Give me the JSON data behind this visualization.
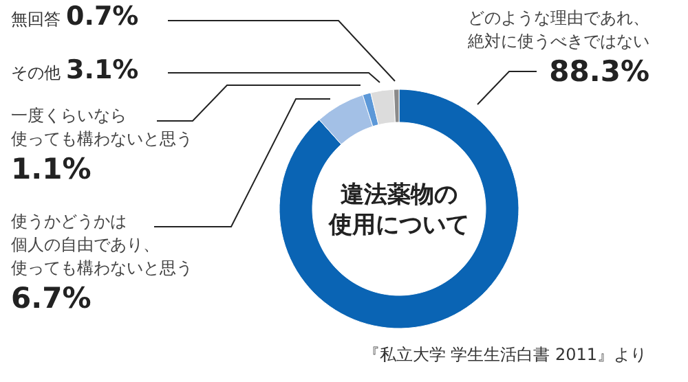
{
  "chart_data": {
    "type": "donut",
    "title": "違法薬物の使用について",
    "categories": [
      "どのような理由であれ、絶対に使うべきではない",
      "使うかどうかは個人の自由であり、使っても構わないと思う",
      "一度くらいなら使っても構わないと思う",
      "その他",
      "無回答"
    ],
    "values": [
      88.3,
      6.7,
      1.1,
      3.1,
      0.7
    ],
    "value_labels": [
      "88.3%",
      "6.7%",
      "1.1%",
      "3.1%",
      "0.7%"
    ],
    "colors": [
      "#0a64b4",
      "#a3c0e6",
      "#5c98d8",
      "#dcdcdc",
      "#8a8a8a"
    ],
    "annotations": [
      "『私立大学 学生生活白書 2011』より"
    ]
  }
}
